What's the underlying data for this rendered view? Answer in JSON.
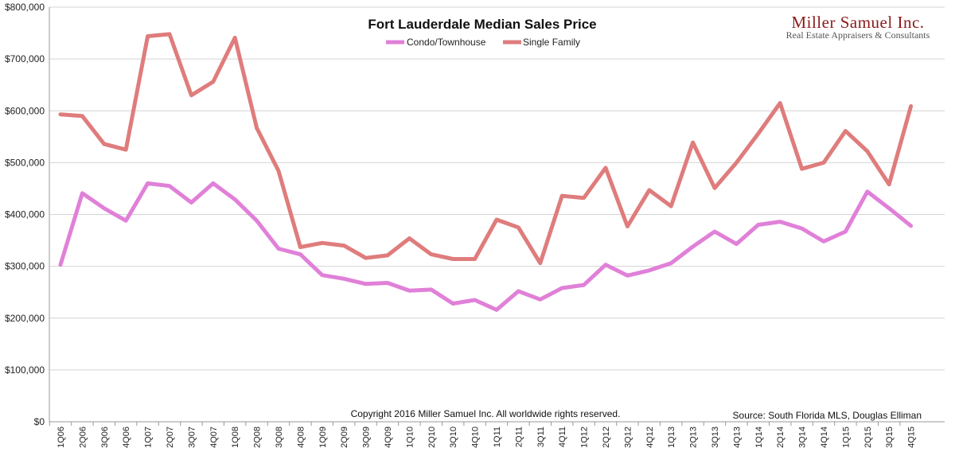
{
  "brand": {
    "name": "Miller Samuel Inc.",
    "tagline": "Real Estate Appraisers & Consultants"
  },
  "footer": {
    "copyright": "Copyright 2016 Miller Samuel Inc.  All worldwide rights reserved.",
    "source": "Source:  South Florida MLS, Douglas Elliman"
  },
  "chart_data": {
    "type": "line",
    "title": "Fort Lauderdale Median Sales Price",
    "xlabel": "",
    "ylabel": "",
    "ylim": [
      0,
      800000
    ],
    "yticks": [
      0,
      100000,
      200000,
      300000,
      400000,
      500000,
      600000,
      700000,
      800000
    ],
    "ytick_labels": [
      "$0",
      "$100,000",
      "$200,000",
      "$300,000",
      "$400,000",
      "$500,000",
      "$600,000",
      "$700,000",
      "$800,000"
    ],
    "grid": "horizontal",
    "legend_position": "top-center",
    "categories": [
      "1Q06",
      "2Q06",
      "3Q06",
      "4Q06",
      "1Q07",
      "2Q07",
      "3Q07",
      "4Q07",
      "1Q08",
      "2Q08",
      "3Q08",
      "4Q08",
      "1Q09",
      "2Q09",
      "3Q09",
      "4Q09",
      "1Q10",
      "2Q10",
      "3Q10",
      "4Q10",
      "1Q11",
      "2Q11",
      "3Q11",
      "4Q11",
      "1Q12",
      "2Q12",
      "3Q12",
      "4Q12",
      "1Q13",
      "2Q13",
      "3Q13",
      "4Q13",
      "1Q14",
      "2Q14",
      "3Q14",
      "4Q14",
      "1Q15",
      "2Q15",
      "3Q15",
      "4Q15"
    ],
    "series": [
      {
        "name": "Condo/Townhouse",
        "color": "#e080d8",
        "values": [
          303000,
          441000,
          412000,
          388000,
          460000,
          455000,
          423000,
          460000,
          429000,
          388000,
          334000,
          323000,
          283000,
          276000,
          266000,
          268000,
          253000,
          255000,
          228000,
          235000,
          216000,
          252000,
          236000,
          258000,
          264000,
          303000,
          282000,
          292000,
          306000,
          338000,
          367000,
          343000,
          380000,
          386000,
          373000,
          348000,
          367000,
          444000,
          412000,
          378000
        ]
      },
      {
        "name": "Single Family",
        "color": "#df7c7c",
        "values": [
          593000,
          590000,
          536000,
          525000,
          744000,
          748000,
          630000,
          656000,
          741000,
          567000,
          484000,
          337000,
          345000,
          340000,
          316000,
          321000,
          354000,
          323000,
          314000,
          314000,
          390000,
          375000,
          306000,
          436000,
          432000,
          490000,
          377000,
          447000,
          416000,
          539000,
          451000,
          500000,
          556000,
          615000,
          488000,
          500000,
          561000,
          522000,
          458000,
          609000
        ]
      }
    ]
  }
}
